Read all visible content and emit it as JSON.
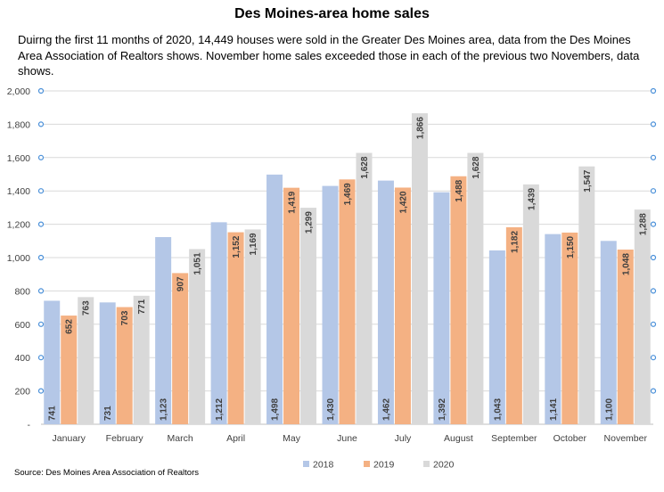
{
  "chart_data": {
    "type": "bar",
    "title": "Des Moines-area home sales",
    "subtitle": "Duirng the first 11 months of 2020, 14,449 houses were sold in the Greater Des Moines area, data from the Des Moines Area Association of Realtors shows. November home sales exceeded those in each of the previous two Novembers, data shows.",
    "source": "Source: Des Moines Area Association of Realtors",
    "categories": [
      "January",
      "February",
      "March",
      "April",
      "May",
      "June",
      "July",
      "August",
      "September",
      "October",
      "November"
    ],
    "series": [
      {
        "name": "2018",
        "color": "#b4c7e7",
        "values": [
          741,
          731,
          1123,
          1212,
          1498,
          1430,
          1462,
          1392,
          1043,
          1141,
          1100
        ]
      },
      {
        "name": "2019",
        "color": "#f4b183",
        "values": [
          652,
          703,
          907,
          1152,
          1419,
          1469,
          1420,
          1488,
          1182,
          1150,
          1048
        ]
      },
      {
        "name": "2020",
        "color": "#d9d9d9",
        "values": [
          763,
          771,
          1051,
          1169,
          1299,
          1628,
          1866,
          1628,
          1439,
          1547,
          1288
        ]
      }
    ],
    "ylim": [
      0,
      2000
    ],
    "yticks": [
      0,
      200,
      400,
      600,
      800,
      1000,
      1200,
      1400,
      1600,
      1800,
      2000
    ],
    "ytick_labels": [
      "-",
      "200",
      "400",
      "600",
      "800",
      "1,000",
      "1,200",
      "1,400",
      "1,600",
      "1,800",
      "2,000"
    ],
    "grid": true,
    "legend": "bottom"
  }
}
